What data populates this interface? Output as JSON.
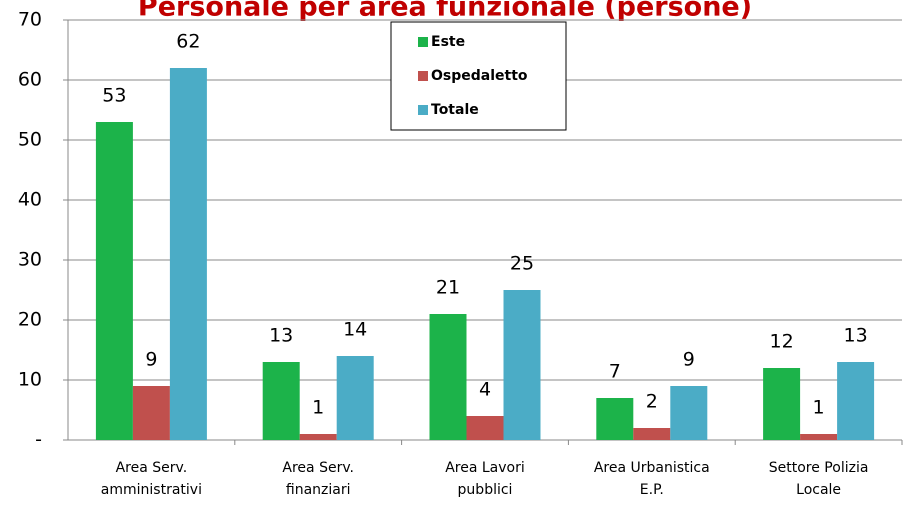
{
  "chart_data": {
    "type": "bar",
    "title": "Personale per area funzionale (persone)",
    "categories": [
      [
        "Area Serv.",
        "amministrativi"
      ],
      [
        "Area Serv.",
        "finanziari"
      ],
      [
        "Area Lavori",
        "pubblici"
      ],
      [
        "Area Urbanistica",
        "E.P."
      ],
      [
        "Settore Polizia",
        "Locale"
      ]
    ],
    "series": [
      {
        "name": "Este",
        "color": "#1cb34a",
        "values": [
          53,
          13,
          21,
          7,
          12
        ]
      },
      {
        "name": "Ospedaletto",
        "color": "#c0504d",
        "values": [
          9,
          1,
          4,
          2,
          1
        ]
      },
      {
        "name": "Totale",
        "color": "#4bacc6",
        "values": [
          62,
          14,
          25,
          9,
          13
        ]
      }
    ],
    "ylim": [
      0,
      70
    ],
    "yticks": [
      {
        "value": 0,
        "label": "-"
      },
      10,
      20,
      30,
      40,
      50,
      60,
      70
    ],
    "grid": true,
    "legend": "top"
  }
}
